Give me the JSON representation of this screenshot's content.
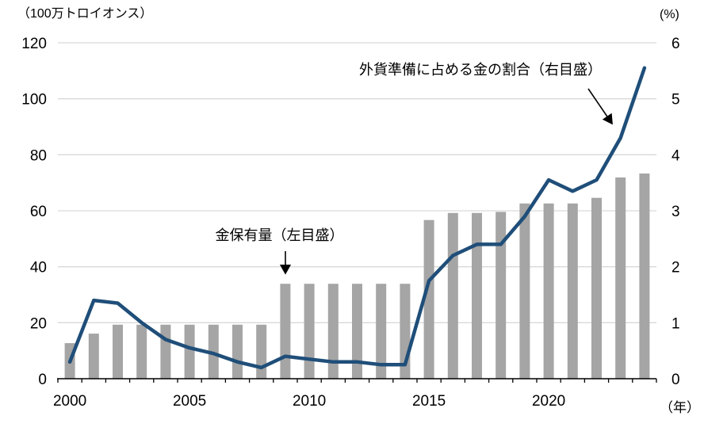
{
  "chart_data": {
    "type": "bar+line",
    "title": "",
    "x": [
      2000,
      2001,
      2002,
      2003,
      2004,
      2005,
      2006,
      2007,
      2008,
      2009,
      2010,
      2011,
      2012,
      2013,
      2014,
      2015,
      2016,
      2017,
      2018,
      2019,
      2020,
      2021,
      2022,
      2023,
      2024
    ],
    "x_axis": {
      "unit_label": "（年）",
      "tick_label_years": [
        2000,
        2005,
        2010,
        2015,
        2020
      ],
      "tick_labels": [
        "2000",
        "2005",
        "2010",
        "2015",
        "2020"
      ]
    },
    "left_axis": {
      "unit_label": "（100万トロイオンス）",
      "min": 0,
      "max": 120,
      "step": 20,
      "tick_labels": [
        "0",
        "20",
        "40",
        "60",
        "80",
        "100",
        "120"
      ]
    },
    "right_axis": {
      "unit_label": "(%)",
      "min": 0,
      "max": 6,
      "step": 1,
      "tick_labels": [
        "0",
        "1",
        "2",
        "3",
        "4",
        "5",
        "6"
      ]
    },
    "series": [
      {
        "name": "金保有量（左目盛）",
        "type": "bar",
        "axis": "left",
        "color": "#a5a5a5",
        "values": [
          12.7,
          16.1,
          19.3,
          19.3,
          19.3,
          19.3,
          19.3,
          19.3,
          19.3,
          33.9,
          33.9,
          33.9,
          33.9,
          33.9,
          33.9,
          56.7,
          59.2,
          59.2,
          59.6,
          62.6,
          62.6,
          62.6,
          64.6,
          71.9,
          73.3
        ]
      },
      {
        "name": "外貨準備に占める金の割合（右目盛）",
        "type": "line",
        "axis": "right",
        "color": "#1f4e79",
        "values": [
          0.3,
          1.4,
          1.35,
          1.0,
          0.7,
          0.55,
          0.45,
          0.3,
          0.2,
          0.4,
          0.35,
          0.3,
          0.3,
          0.25,
          0.25,
          1.75,
          2.2,
          2.4,
          2.4,
          2.9,
          3.55,
          3.35,
          3.55,
          4.3,
          5.55
        ]
      }
    ],
    "annotations": [
      {
        "id": "bar-annotation",
        "text": "金保有量（左目盛）",
        "arrow": "straight-down",
        "points_to": "2009 bar top"
      },
      {
        "id": "line-annotation",
        "text": "外貨準備に占める金の割合（右目盛）",
        "arrow": "down-right",
        "points_to": "line near 2023"
      }
    ],
    "grid": true,
    "gridline_color": "#d9d9d9",
    "axis_line_color": "#000000",
    "legend_position": "none"
  }
}
